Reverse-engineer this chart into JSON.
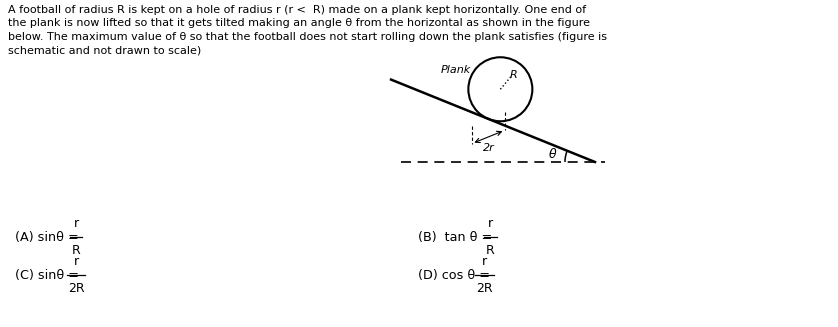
{
  "bg_color": "#ffffff",
  "text_color": "#000000",
  "paragraph": "A football of radius R is kept on a hole of radius r (r <  R) made on a plank kept horizontally. One end of\nthe plank is now lifted so that it gets tilted making an angle θ from the horizontal as shown in the figure\nbelow. The maximum value of θ so that the football does not start rolling down the plank satisfies (figure is\nschematic and not drawn to scale)",
  "theta_deg": 22,
  "plank_label": "Plank",
  "ball_label": "R",
  "dim_label": "2r",
  "angle_label": "θ",
  "opt_A_text": "(A) sinθ =",
  "opt_B_text": "(B)  tan θ =",
  "opt_C_text": "(C) sinθ =",
  "opt_D_text": "(D) cos θ =",
  "frac_A_num": "r",
  "frac_A_den": "R",
  "frac_B_num": "r",
  "frac_B_den": "R",
  "frac_C_num": "r",
  "frac_C_den": "2R",
  "frac_D_num": "r",
  "frac_D_den": "2R"
}
